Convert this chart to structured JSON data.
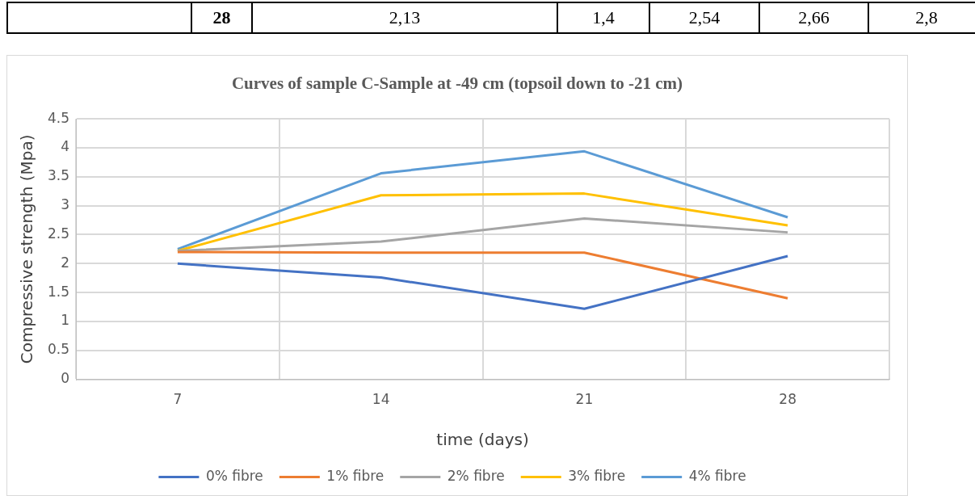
{
  "chart_data": {
    "type": "line",
    "title": "Curves of sample C-Sample at -49 cm (topsoil down to -21 cm)",
    "xlabel": "time (days)",
    "ylabel": "Compressive strength (Mpa)",
    "categories": [
      "7",
      "14",
      "21",
      "28"
    ],
    "series": [
      {
        "name": "0% fibre",
        "color": "#4472c4",
        "values": [
          2.0,
          1.76,
          1.22,
          2.13
        ]
      },
      {
        "name": "1% fibre",
        "color": "#ed7d31",
        "values": [
          2.2,
          2.19,
          2.19,
          1.4
        ]
      },
      {
        "name": "2% fibre",
        "color": "#a5a5a5",
        "values": [
          2.22,
          2.38,
          2.78,
          2.54
        ]
      },
      {
        "name": "3% fibre",
        "color": "#ffc000",
        "values": [
          2.22,
          3.18,
          3.21,
          2.66
        ]
      },
      {
        "name": "4% fibre",
        "color": "#5b9bd5",
        "values": [
          2.25,
          3.56,
          3.94,
          2.8
        ]
      }
    ],
    "ylim": [
      0,
      4.5
    ],
    "yticks": [
      0,
      0.5,
      1,
      1.5,
      2,
      2.5,
      3,
      3.5,
      4,
      4.5
    ],
    "grid": true,
    "legend": "bottom",
    "marker": "none",
    "line_style": "solid",
    "annotations": [
      "28",
      "2,13",
      "1,4",
      "2,54",
      "2,66",
      "2,8"
    ]
  }
}
